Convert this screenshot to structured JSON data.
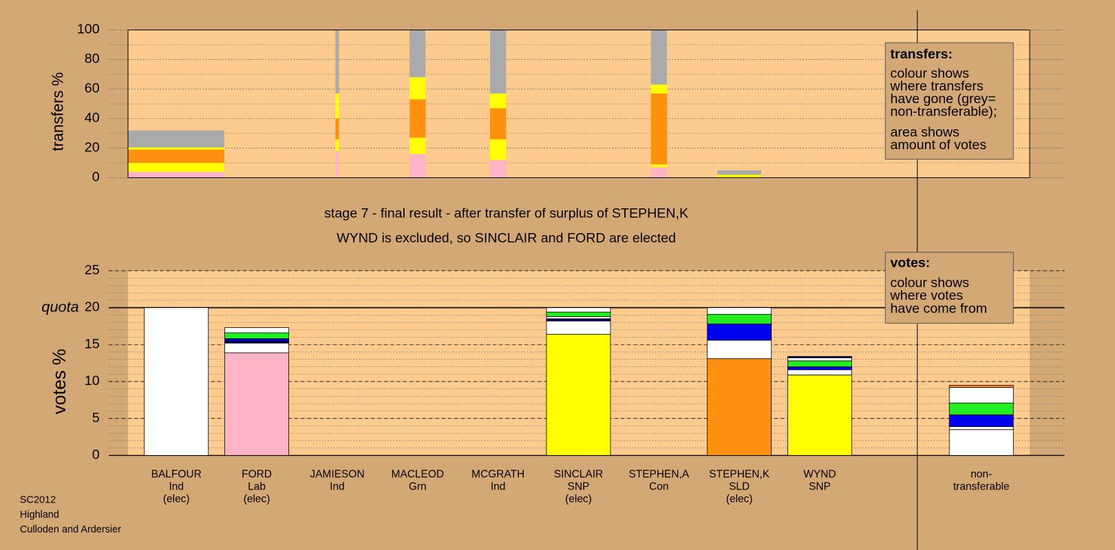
{
  "chart_data": [
    {
      "type": "stacked-bar",
      "ylabel": "transfers %",
      "ylim": [
        0,
        100
      ],
      "yticks": [
        0,
        20,
        40,
        60,
        80,
        100
      ],
      "minor_step": 10,
      "stacks": [
        {
          "amount": 6,
          "segments": [
            {
              "color": "#ffb3c6",
              "value": 4
            },
            {
              "color": "#ffff00",
              "value": 6
            },
            {
              "color": "#ff9010",
              "value": 9
            },
            {
              "color": "#ffff00",
              "value": 1.5
            },
            {
              "color": "#aaaaaa",
              "value": 11.5
            }
          ]
        },
        null,
        {
          "amount": 0.22,
          "segments": [
            {
              "color": "#ffb3c6",
              "value": 18
            },
            {
              "color": "#ffff00",
              "value": 8
            },
            {
              "color": "#ff9010",
              "value": 14
            },
            {
              "color": "#ffff00",
              "value": 17
            },
            {
              "color": "#aaaaaa",
              "value": 43
            }
          ]
        },
        {
          "amount": 1,
          "segments": [
            {
              "color": "#ffb3c6",
              "value": 16
            },
            {
              "color": "#ffff00",
              "value": 11
            },
            {
              "color": "#ff9010",
              "value": 26
            },
            {
              "color": "#ffff00",
              "value": 15
            },
            {
              "color": "#aaaaaa",
              "value": 32
            }
          ]
        },
        {
          "amount": 1,
          "segments": [
            {
              "color": "#ffb3c6",
              "value": 12
            },
            {
              "color": "#ffff00",
              "value": 14
            },
            {
              "color": "#ff9010",
              "value": 21
            },
            {
              "color": "#ffff00",
              "value": 10
            },
            {
              "color": "#aaaaaa",
              "value": 43
            }
          ]
        },
        null,
        {
          "amount": 1,
          "segments": [
            {
              "color": "#ffb3c6",
              "value": 7
            },
            {
              "color": "#ffff00",
              "value": 2
            },
            {
              "color": "#ff9010",
              "value": 48
            },
            {
              "color": "#ffff00",
              "value": 6
            },
            {
              "color": "#aaaaaa",
              "value": 37
            }
          ]
        },
        {
          "amount": 2.75,
          "segments": [
            {
              "color": "#ffff00",
              "value": 2
            },
            {
              "color": "#aaaaaa",
              "value": 3
            }
          ]
        },
        null,
        null
      ]
    },
    {
      "type": "stacked-bar",
      "ylabel": "votes %",
      "ylim": [
        0,
        25
      ],
      "yticks": [
        0,
        5,
        10,
        15,
        20,
        25
      ],
      "minor_step": 1,
      "quota": {
        "label": "quota",
        "value": 20
      },
      "categories": [
        [
          "BALFOUR",
          "Ind",
          "(elec)"
        ],
        [
          "FORD",
          "Lab",
          "(elec)"
        ],
        [
          "JAMIESON",
          "Ind"
        ],
        [
          "MACLEOD",
          "Grn"
        ],
        [
          "MCGRATH",
          "Ind"
        ],
        [
          "SINCLAIR",
          "SNP",
          "(elec)"
        ],
        [
          "STEPHEN,A",
          "Con"
        ],
        [
          "STEPHEN,K",
          "SLD",
          "(elec)"
        ],
        [
          "WYND",
          "SNP"
        ],
        [
          "non-",
          "transferable"
        ]
      ],
      "stacks": [
        {
          "segments": [
            {
              "color": "#ffffff",
              "value": 20
            }
          ]
        },
        {
          "segments": [
            {
              "color": "#ffb3c6",
              "value": 13.9
            },
            {
              "color": "#ffffff",
              "value": 1.3
            },
            {
              "color": "#000066",
              "value": 0.3
            },
            {
              "color": "#0000ee",
              "value": 0.3
            },
            {
              "color": "#22ee22",
              "value": 0.8
            },
            {
              "color": "#ffffff",
              "value": 0.7
            }
          ]
        },
        {
          "segments": []
        },
        {
          "segments": []
        },
        {
          "segments": []
        },
        {
          "segments": [
            {
              "color": "#ffff00",
              "value": 16.4
            },
            {
              "color": "#ffffff",
              "value": 1.8
            },
            {
              "color": "#000066",
              "value": 0.3
            },
            {
              "color": "#ffffff",
              "value": 0.3
            },
            {
              "color": "#22ee22",
              "value": 0.6
            },
            {
              "color": "#ffffff",
              "value": 0.6
            }
          ]
        },
        {
          "segments": []
        },
        {
          "segments": [
            {
              "color": "#ff9010",
              "value": 13.1
            },
            {
              "color": "#ffffff",
              "value": 2.5
            },
            {
              "color": "#0000ee",
              "value": 2.2
            },
            {
              "color": "#22ee22",
              "value": 1.3
            },
            {
              "color": "#ffffff",
              "value": 0.9
            }
          ]
        },
        {
          "segments": [
            {
              "color": "#ffff00",
              "value": 10.9
            },
            {
              "color": "#ffffff",
              "value": 0.7
            },
            {
              "color": "#0000ee",
              "value": 0.4
            },
            {
              "color": "#22ee22",
              "value": 0.8
            },
            {
              "color": "#ffffff",
              "value": 0.4
            },
            {
              "color": "#000066",
              "value": 0.2
            }
          ]
        },
        {
          "segments": [
            {
              "color": "#ffffff",
              "value": 3.5
            },
            {
              "color": "#ffffff",
              "value": 0.4
            },
            {
              "color": "#0000ee",
              "value": 1.6
            },
            {
              "color": "#22ee22",
              "value": 1.6
            },
            {
              "color": "#ffffff",
              "value": 2.1
            },
            {
              "color": "#ff9010",
              "value": 0.3
            }
          ]
        }
      ]
    }
  ],
  "stage_lines": [
    "stage 7 - final result - after transfer of surplus of STEPHEN,K",
    "WYND is excluded, so SINCLAIR and FORD are elected"
  ],
  "legend_transfers": {
    "title": "transfers:",
    "lines": [
      "colour shows",
      "where transfers",
      "have gone (grey=",
      "non-transferable);",
      "area shows",
      "amount of votes"
    ]
  },
  "legend_votes": {
    "title": "votes:",
    "lines": [
      "colour shows",
      "where votes",
      "have come from"
    ]
  },
  "footer": [
    "SC2012",
    "Highland",
    "Culloden and Ardersier"
  ]
}
